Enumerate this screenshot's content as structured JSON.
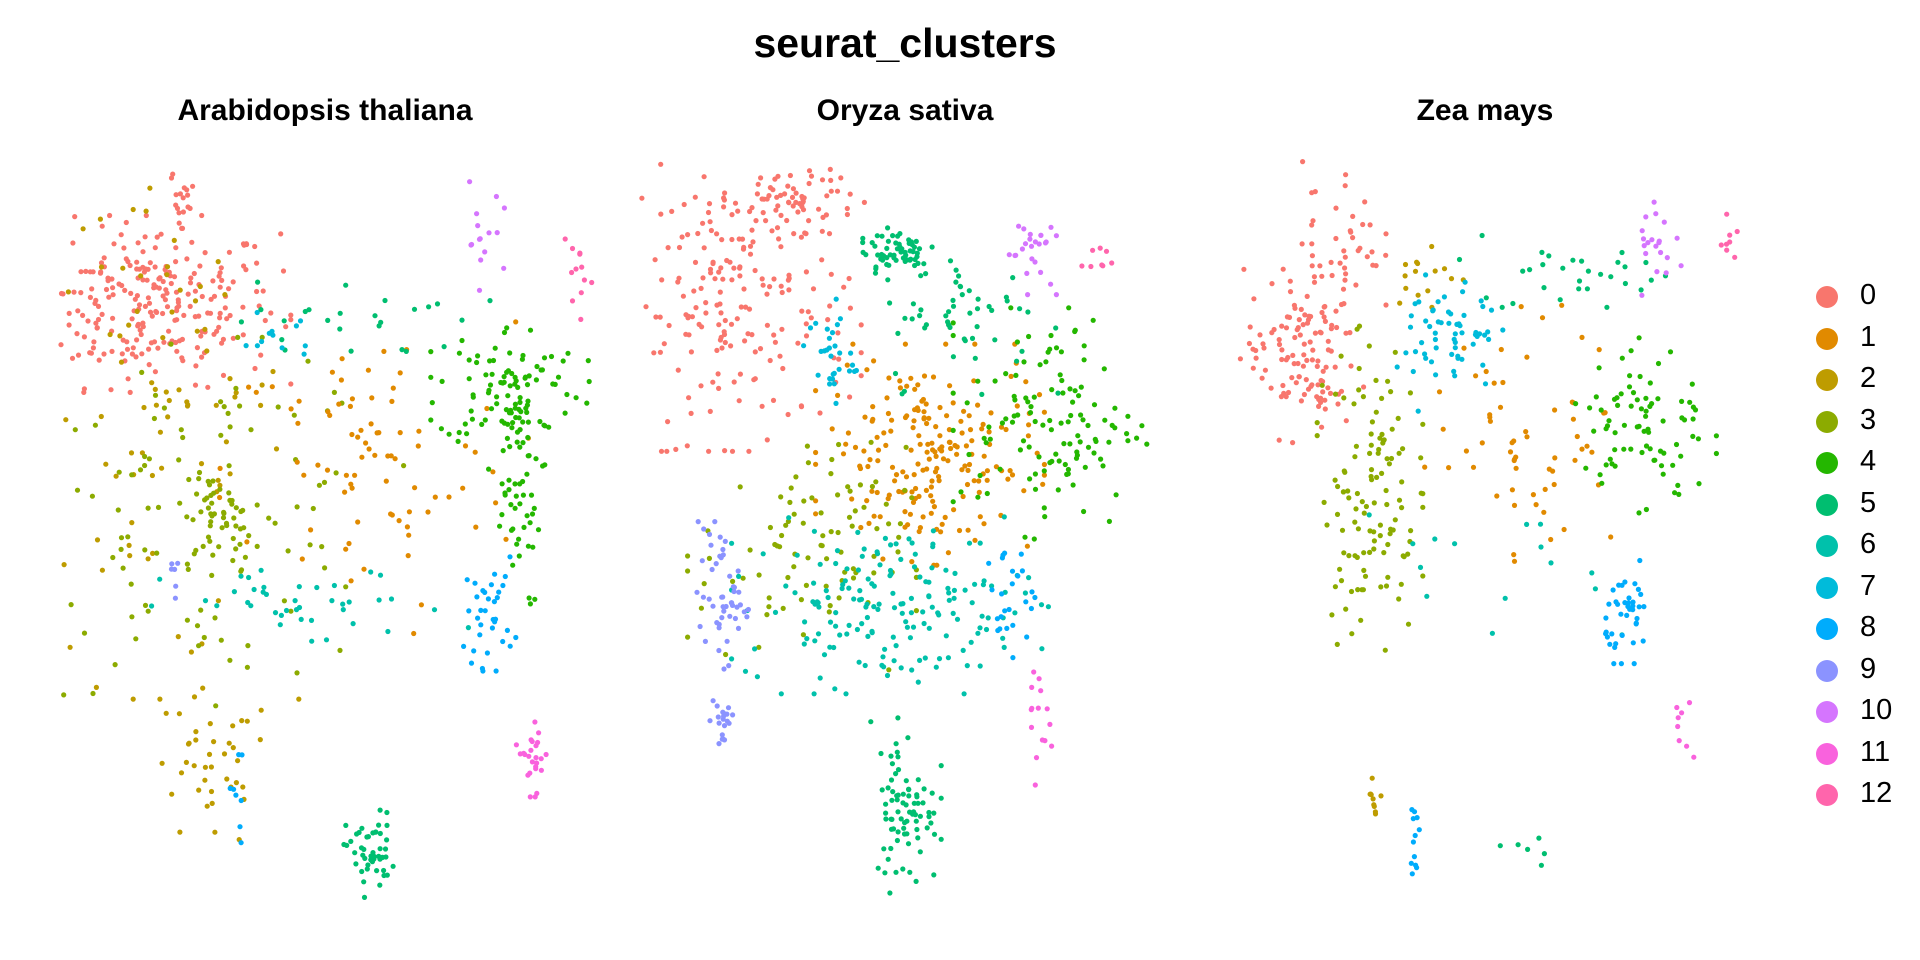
{
  "figure": {
    "title": "seurat_clusters"
  },
  "chart_data": {
    "type": "scatter",
    "title": "seurat_clusters",
    "xlabel": "",
    "ylabel": "",
    "grid": false,
    "axes": false,
    "legend_position": "right",
    "panels": [
      "Arabidopsis thaliana",
      "Oryza sativa",
      "Zea mays"
    ],
    "clusters": [
      "0",
      "1",
      "2",
      "3",
      "4",
      "5",
      "6",
      "7",
      "8",
      "9",
      "10",
      "11",
      "12"
    ],
    "colors": [
      "#F8766D",
      "#E18A00",
      "#BE9C00",
      "#8CAB00",
      "#24B700",
      "#00BE70",
      "#00C1AB",
      "#00BBDA",
      "#00ACFC",
      "#8B93FF",
      "#D575FE",
      "#F962DD",
      "#FF65AC"
    ],
    "regions": [
      {
        "panel": 0,
        "cluster": "0",
        "x": 2,
        "y": 10,
        "sx": 1.6,
        "sy": 1.2,
        "n": 260
      },
      {
        "panel": 0,
        "cluster": "0",
        "x": 2.8,
        "y": 13,
        "sx": 0.15,
        "sy": 0.6,
        "n": 20
      },
      {
        "panel": 0,
        "cluster": "2",
        "x": 2.2,
        "y": 7,
        "sx": 1.6,
        "sy": 4,
        "n": 90
      },
      {
        "panel": 0,
        "cluster": "2",
        "x": 3.5,
        "y": -4,
        "sx": 0.8,
        "sy": 1.2,
        "n": 40
      },
      {
        "panel": 0,
        "cluster": "3",
        "x": 3.5,
        "y": 3.5,
        "sx": 2.2,
        "sy": 2.5,
        "n": 110
      },
      {
        "panel": 0,
        "cluster": "3",
        "x": 3.8,
        "y": 3.6,
        "sx": 0.4,
        "sy": 0.5,
        "n": 40
      },
      {
        "panel": 0,
        "cluster": "1",
        "x": 7.5,
        "y": 5,
        "sx": 1.8,
        "sy": 2.2,
        "n": 80
      },
      {
        "panel": 0,
        "cluster": "4",
        "x": 11,
        "y": 7.6,
        "sx": 0.9,
        "sy": 0.9,
        "n": 90
      },
      {
        "panel": 0,
        "cluster": "4",
        "x": 11.1,
        "y": 4.5,
        "sx": 0.35,
        "sy": 1.8,
        "n": 60
      },
      {
        "panel": 0,
        "cluster": "5",
        "x": 7.2,
        "y": 9.5,
        "sx": 1.5,
        "sy": 0.6,
        "n": 25
      },
      {
        "panel": 0,
        "cluster": "5",
        "x": 7.5,
        "y": -6.4,
        "sx": 0.3,
        "sy": 0.6,
        "n": 50
      },
      {
        "panel": 0,
        "cluster": "6",
        "x": 6,
        "y": 0.9,
        "sx": 1.8,
        "sy": 0.6,
        "n": 40
      },
      {
        "panel": 0,
        "cluster": "7",
        "x": 5.2,
        "y": 9.2,
        "sx": 0.5,
        "sy": 0.5,
        "n": 12
      },
      {
        "panel": 0,
        "cluster": "8",
        "x": 10.5,
        "y": 0.8,
        "sx": 0.3,
        "sy": 0.8,
        "n": 35
      },
      {
        "panel": 0,
        "cluster": "8",
        "x": 4.2,
        "y": -4.8,
        "sx": 0.1,
        "sy": 0.8,
        "n": 8
      },
      {
        "panel": 0,
        "cluster": "9",
        "x": 2.6,
        "y": 1.9,
        "sx": 0.1,
        "sy": 0.4,
        "n": 6
      },
      {
        "panel": 0,
        "cluster": "10",
        "x": 10.2,
        "y": 11.9,
        "sx": 0.3,
        "sy": 0.8,
        "n": 15
      },
      {
        "panel": 0,
        "cluster": "11",
        "x": 11.6,
        "y": -3.4,
        "sx": 0.2,
        "sy": 0.6,
        "n": 25
      },
      {
        "panel": 0,
        "cluster": "12",
        "x": 12.7,
        "y": 10.4,
        "sx": 0.2,
        "sy": 0.7,
        "n": 12
      },
      {
        "panel": 1,
        "cluster": "0",
        "x": 2.2,
        "y": 10,
        "sx": 1.4,
        "sy": 2,
        "n": 200
      },
      {
        "panel": 1,
        "cluster": "0",
        "x": 3.6,
        "y": 13.2,
        "sx": 0.8,
        "sy": 0.5,
        "n": 60
      },
      {
        "panel": 1,
        "cluster": "1",
        "x": 7,
        "y": 5.5,
        "sx": 1.3,
        "sy": 1.5,
        "n": 200
      },
      {
        "panel": 1,
        "cluster": "3",
        "x": 3.8,
        "y": 2.5,
        "sx": 1.3,
        "sy": 1.6,
        "n": 90
      },
      {
        "panel": 1,
        "cluster": "4",
        "x": 10,
        "y": 6.5,
        "sx": 1.1,
        "sy": 1.6,
        "n": 120
      },
      {
        "panel": 1,
        "cluster": "5",
        "x": 6.2,
        "y": 11.6,
        "sx": 0.5,
        "sy": 0.4,
        "n": 60
      },
      {
        "panel": 1,
        "cluster": "5",
        "x": 8,
        "y": 9.5,
        "sx": 1,
        "sy": 1,
        "n": 50
      },
      {
        "panel": 1,
        "cluster": "5",
        "x": 6.4,
        "y": -5,
        "sx": 0.4,
        "sy": 1.2,
        "n": 80
      },
      {
        "panel": 1,
        "cluster": "6",
        "x": 6,
        "y": 1,
        "sx": 1.8,
        "sy": 1.2,
        "n": 170
      },
      {
        "panel": 1,
        "cluster": "7",
        "x": 4.5,
        "y": 8.5,
        "sx": 0.3,
        "sy": 0.8,
        "n": 30
      },
      {
        "panel": 1,
        "cluster": "8",
        "x": 9,
        "y": 1.2,
        "sx": 0.3,
        "sy": 0.8,
        "n": 25
      },
      {
        "panel": 1,
        "cluster": "9",
        "x": 1.8,
        "y": 1.3,
        "sx": 0.3,
        "sy": 1,
        "n": 50
      },
      {
        "panel": 1,
        "cluster": "9",
        "x": 1.8,
        "y": -2.5,
        "sx": 0.15,
        "sy": 0.5,
        "n": 20
      },
      {
        "panel": 1,
        "cluster": "10",
        "x": 9.5,
        "y": 11.6,
        "sx": 0.3,
        "sy": 0.6,
        "n": 25
      },
      {
        "panel": 1,
        "cluster": "11",
        "x": 9.6,
        "y": -2.2,
        "sx": 0.2,
        "sy": 1,
        "n": 15
      },
      {
        "panel": 1,
        "cluster": "12",
        "x": 11.2,
        "y": 11.4,
        "sx": 0.2,
        "sy": 0.3,
        "n": 8
      },
      {
        "panel": 2,
        "cluster": "0",
        "x": 1.8,
        "y": 8.5,
        "sx": 0.7,
        "sy": 1.2,
        "n": 120
      },
      {
        "panel": 2,
        "cluster": "0",
        "x": 2.8,
        "y": 12,
        "sx": 0.5,
        "sy": 1.2,
        "n": 40
      },
      {
        "panel": 2,
        "cluster": "1",
        "x": 7.5,
        "y": 6,
        "sx": 1.2,
        "sy": 1.8,
        "n": 60
      },
      {
        "panel": 2,
        "cluster": "2",
        "x": 5,
        "y": 11,
        "sx": 0.5,
        "sy": 0.5,
        "n": 15
      },
      {
        "panel": 2,
        "cluster": "2",
        "x": 3.6,
        "y": -4.7,
        "sx": 0.1,
        "sy": 0.4,
        "n": 10
      },
      {
        "panel": 2,
        "cluster": "3",
        "x": 3.5,
        "y": 4.5,
        "sx": 0.6,
        "sy": 2.2,
        "n": 120
      },
      {
        "panel": 2,
        "cluster": "4",
        "x": 10.4,
        "y": 6.3,
        "sx": 0.8,
        "sy": 1.3,
        "n": 80
      },
      {
        "panel": 2,
        "cluster": "5",
        "x": 8.5,
        "y": 11,
        "sx": 1.5,
        "sy": 0.5,
        "n": 30
      },
      {
        "panel": 2,
        "cluster": "5",
        "x": 7.5,
        "y": -6.2,
        "sx": 0.5,
        "sy": 0.4,
        "n": 6
      },
      {
        "panel": 2,
        "cluster": "6",
        "x": 6.5,
        "y": 1.5,
        "sx": 1.5,
        "sy": 1,
        "n": 15
      },
      {
        "panel": 2,
        "cluster": "7",
        "x": 5.5,
        "y": 9,
        "sx": 0.6,
        "sy": 1,
        "n": 60
      },
      {
        "panel": 2,
        "cluster": "8",
        "x": 10,
        "y": 0.8,
        "sx": 0.3,
        "sy": 0.7,
        "n": 40
      },
      {
        "panel": 2,
        "cluster": "8",
        "x": 4.6,
        "y": -6.2,
        "sx": 0.15,
        "sy": 0.5,
        "n": 12
      },
      {
        "panel": 2,
        "cluster": "10",
        "x": 10.8,
        "y": 11.5,
        "sx": 0.3,
        "sy": 0.7,
        "n": 20
      },
      {
        "panel": 2,
        "cluster": "11",
        "x": 11.3,
        "y": -2.8,
        "sx": 0.2,
        "sy": 0.6,
        "n": 8
      },
      {
        "panel": 2,
        "cluster": "12",
        "x": 12.5,
        "y": 11.8,
        "sx": 0.2,
        "sy": 0.4,
        "n": 8
      }
    ]
  }
}
